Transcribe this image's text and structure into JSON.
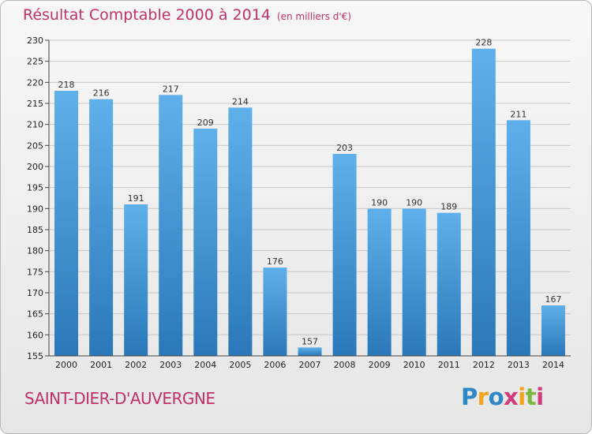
{
  "header": {
    "title": "Résultat Comptable 2000 à 2014",
    "subtitle": "(en milliers d'€)"
  },
  "footer": {
    "commune": "SAINT-DIER-D'AUVERGNE",
    "logo_letters": [
      "P",
      "r",
      "o",
      "x",
      "i",
      "t",
      "i"
    ],
    "logo_colors": [
      "#2e88c7",
      "#f2a31b",
      "#2e88c7",
      "#d23a7c",
      "#f2a31b",
      "#7cb742",
      "#d23a7c"
    ]
  },
  "colors": {
    "bar_light": "#5fb0ea",
    "bar_dark": "#2a78b9",
    "grid": "#c8c8c8",
    "axis": "#444444",
    "title": "#c0306a"
  },
  "chart_data": {
    "type": "bar",
    "title": "Résultat Comptable 2000 à 2014",
    "subtitle": "(en milliers d'€)",
    "categories": [
      "2000",
      "2001",
      "2002",
      "2003",
      "2004",
      "2005",
      "2006",
      "2007",
      "2008",
      "2009",
      "2010",
      "2011",
      "2012",
      "2013",
      "2014"
    ],
    "values": [
      218,
      216,
      191,
      217,
      209,
      214,
      176,
      157,
      203,
      190,
      190,
      189,
      228,
      211,
      167
    ],
    "ylim": [
      155,
      230
    ],
    "yticks": [
      155,
      160,
      165,
      170,
      175,
      180,
      185,
      190,
      195,
      200,
      205,
      210,
      215,
      220,
      225,
      230
    ],
    "grid": true,
    "data_labels": true
  }
}
